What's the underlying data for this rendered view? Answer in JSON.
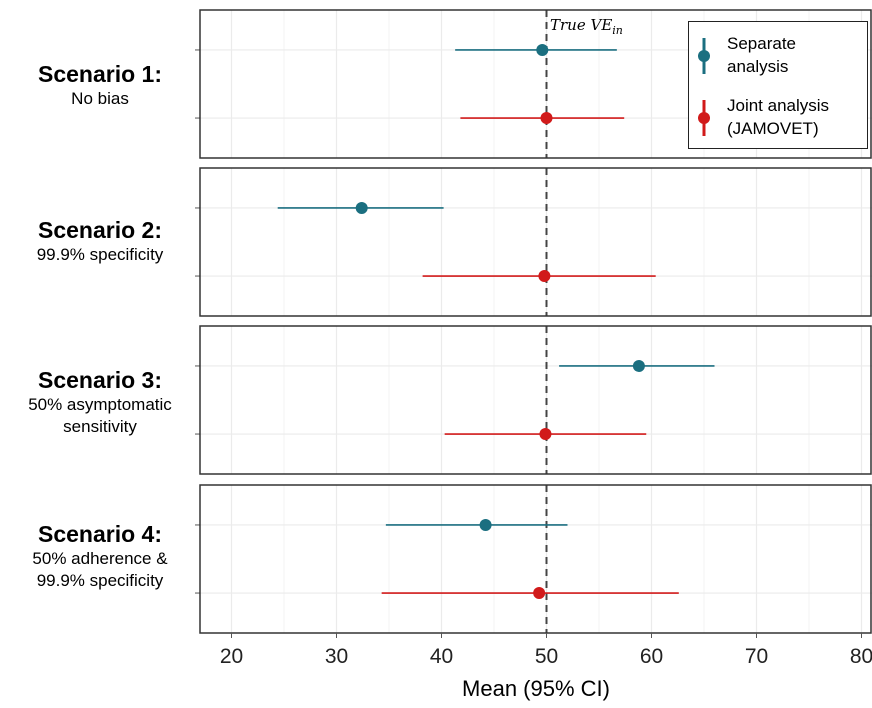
{
  "colors": {
    "separate": "#1b6f80",
    "joint": "#d11a1a",
    "panel_border": "#333333",
    "grid": "#ebebeb",
    "reference_line": "#444444"
  },
  "chart_data": {
    "type": "forest",
    "xlabel": "Mean (95% CI)",
    "xlim": [
      17,
      81
    ],
    "xticks": [
      20,
      30,
      40,
      50,
      60,
      70,
      80
    ],
    "grid": true,
    "reference_line": {
      "x": 50,
      "label": "True VE",
      "label_subscript": "in",
      "style": "dashed"
    },
    "legend": {
      "placement": "top-right",
      "entries": [
        {
          "key": "separate",
          "label": "Separate\nanalysis"
        },
        {
          "key": "joint",
          "label": "Joint analysis\n(JAMOVET)"
        }
      ]
    },
    "panels": [
      {
        "title": "Scenario 1:",
        "subtitle": "No bias",
        "separate": {
          "mean": 49.6,
          "lower": 41.3,
          "upper": 56.7
        },
        "joint": {
          "mean": 50.0,
          "lower": 41.8,
          "upper": 57.4
        }
      },
      {
        "title": "Scenario 2:",
        "subtitle": "99.9% specificity",
        "separate": {
          "mean": 32.4,
          "lower": 24.4,
          "upper": 40.2
        },
        "joint": {
          "mean": 49.8,
          "lower": 38.2,
          "upper": 60.4
        }
      },
      {
        "title": "Scenario 3:",
        "subtitle": "50% asymptomatic\nsensitivity",
        "separate": {
          "mean": 58.8,
          "lower": 51.2,
          "upper": 66.0
        },
        "joint": {
          "mean": 49.9,
          "lower": 40.3,
          "upper": 59.5
        }
      },
      {
        "title": "Scenario 4:",
        "subtitle": "50% adherence &\n99.9% specificity",
        "separate": {
          "mean": 44.2,
          "lower": 34.7,
          "upper": 52.0
        },
        "joint": {
          "mean": 49.3,
          "lower": 34.3,
          "upper": 62.6
        }
      }
    ]
  }
}
